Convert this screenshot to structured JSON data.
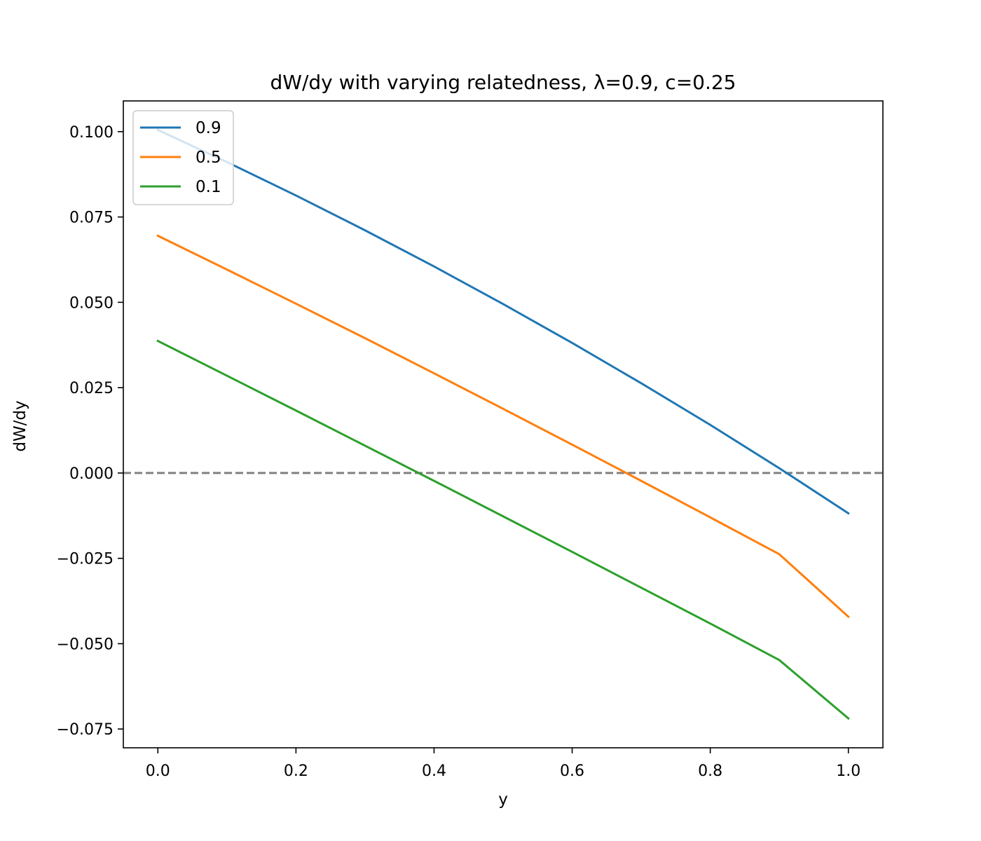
{
  "chart_data": {
    "type": "line",
    "title": "dW/dy with varying relatedness, λ=0.9, c=0.25",
    "xlabel": "y",
    "ylabel": "dW/dy",
    "xlim": [
      -0.05,
      1.05
    ],
    "ylim": [
      -0.0805,
      0.109
    ],
    "xticks": [
      0.0,
      0.2,
      0.4,
      0.6,
      0.8,
      1.0
    ],
    "xtick_labels": [
      "0.0",
      "0.2",
      "0.4",
      "0.6",
      "0.8",
      "1.0"
    ],
    "yticks": [
      0.1,
      0.075,
      0.05,
      0.025,
      0.0,
      -0.025,
      -0.05,
      -0.075
    ],
    "ytick_labels": [
      "0.100",
      "0.075",
      "0.050",
      "0.025",
      "0.000",
      "−0.025",
      "−0.050",
      "−0.075"
    ],
    "grid": false,
    "legend_position": "top-left",
    "x": [
      0.0,
      0.1,
      0.2,
      0.3,
      0.4,
      0.5,
      0.6,
      0.7,
      0.8,
      0.9,
      1.0
    ],
    "series": [
      {
        "name": "0.9",
        "color": "#1f77b4",
        "values": [
          0.1005,
          0.0911,
          0.0813,
          0.0711,
          0.0605,
          0.0495,
          0.0381,
          0.0263,
          0.0141,
          0.0014,
          -0.0118
        ]
      },
      {
        "name": "0.5",
        "color": "#ff7f0e",
        "values": [
          0.0695,
          0.0596,
          0.0496,
          0.0395,
          0.0292,
          0.0188,
          0.0083,
          -0.0023,
          -0.013,
          -0.0238,
          -0.0421
        ]
      },
      {
        "name": "0.1",
        "color": "#2ca02c",
        "values": [
          0.0387,
          0.0285,
          0.0183,
          0.008,
          -0.0023,
          -0.0127,
          -0.0231,
          -0.0336,
          -0.0441,
          -0.0548,
          -0.0719
        ]
      }
    ],
    "reference_line": {
      "y": 0.0,
      "color": "#808080",
      "style": "dashed"
    }
  }
}
